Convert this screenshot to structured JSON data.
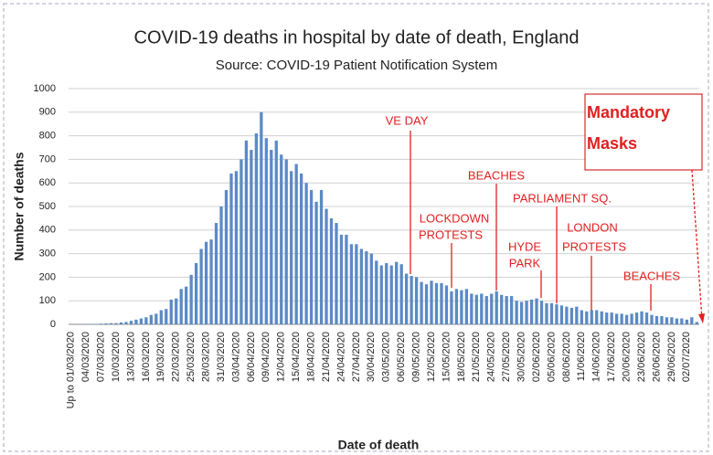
{
  "chart_data": {
    "type": "bar",
    "title": "COVID-19 deaths in hospital by date of death, England",
    "subtitle": "Source: COVID-19 Patient Notification System",
    "x_label": "Date of death",
    "y_label": "Number of deaths",
    "color": "#5b8ac6",
    "grid": true,
    "ylim": [
      0,
      1000
    ],
    "yticks": [
      0,
      100,
      200,
      300,
      400,
      500,
      600,
      700,
      800,
      900,
      1000
    ],
    "categories": [
      "Up to 01/03/2020",
      null,
      null,
      "04/03/2020",
      null,
      null,
      "07/03/2020",
      null,
      null,
      "10/03/2020",
      null,
      null,
      "13/03/2020",
      null,
      null,
      "16/03/2020",
      null,
      null,
      "19/03/2020",
      null,
      null,
      "22/03/2020",
      null,
      null,
      "25/03/2020",
      null,
      null,
      "28/03/2020",
      null,
      null,
      "31/03/2020",
      null,
      null,
      "03/04/2020",
      null,
      null,
      "06/04/2020",
      null,
      null,
      "09/04/2020",
      null,
      null,
      "12/04/2020",
      null,
      null,
      "15/04/2020",
      null,
      null,
      "18/04/2020",
      null,
      null,
      "21/04/2020",
      null,
      null,
      "24/04/2020",
      null,
      null,
      "27/04/2020",
      null,
      null,
      "30/04/2020",
      null,
      null,
      "03/05/2020",
      null,
      null,
      "06/05/2020",
      null,
      null,
      "09/05/2020",
      null,
      null,
      "12/05/2020",
      null,
      null,
      "15/05/2020",
      null,
      null,
      "18/05/2020",
      null,
      null,
      "21/05/2020",
      null,
      null,
      "24/05/2020",
      null,
      null,
      "27/05/2020",
      null,
      null,
      "30/05/2020",
      null,
      null,
      "02/06/2020",
      null,
      null,
      "05/06/2020",
      null,
      null,
      "08/06/2020",
      null,
      null,
      "11/06/2020",
      null,
      null,
      "14/06/2020",
      null,
      null,
      "17/06/2020",
      null,
      null,
      "20/06/2020",
      null,
      null,
      "23/06/2020",
      null,
      null,
      "26/06/2020",
      null,
      null,
      "29/06/2020",
      null,
      null,
      "02/07/2020",
      null,
      null
    ],
    "values": [
      0,
      0,
      0,
      1,
      1,
      2,
      3,
      4,
      5,
      5,
      8,
      10,
      15,
      20,
      25,
      30,
      40,
      45,
      60,
      65,
      105,
      110,
      150,
      160,
      210,
      260,
      320,
      350,
      360,
      430,
      500,
      570,
      640,
      650,
      700,
      780,
      740,
      810,
      900,
      790,
      740,
      780,
      720,
      700,
      650,
      680,
      640,
      600,
      570,
      520,
      570,
      490,
      450,
      430,
      380,
      380,
      340,
      340,
      320,
      310,
      300,
      270,
      250,
      260,
      250,
      265,
      255,
      215,
      205,
      200,
      180,
      170,
      185,
      175,
      175,
      165,
      140,
      150,
      145,
      150,
      130,
      125,
      130,
      120,
      130,
      140,
      125,
      120,
      120,
      100,
      95,
      100,
      105,
      110,
      100,
      90,
      90,
      85,
      80,
      75,
      70,
      75,
      60,
      55,
      60,
      60,
      55,
      50,
      50,
      45,
      45,
      40,
      45,
      50,
      55,
      50,
      40,
      35,
      35,
      30,
      30,
      25,
      25,
      20,
      30,
      10
    ],
    "annotations": [
      [
        "VE DAY"
      ],
      [
        "LOCKDOWN",
        "PROTESTS"
      ],
      [
        "BEACHES"
      ],
      [
        "HYDE",
        "PARK"
      ],
      [
        "PARLIAMENT SQ."
      ],
      [
        "LONDON",
        "PROTESTS"
      ],
      [
        "BEACHES"
      ],
      [
        "Mandatory",
        "Masks"
      ]
    ]
  }
}
